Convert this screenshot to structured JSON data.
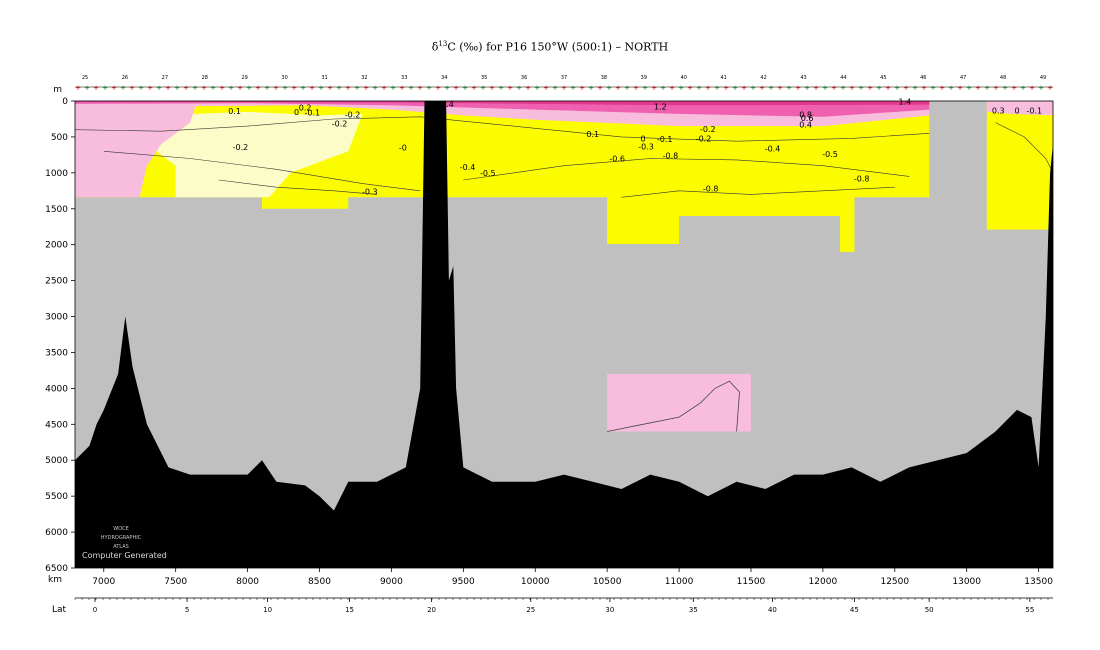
{
  "title": {
    "prefix": "δ",
    "superscript": "13",
    "suffix": "C (‰) for P16 150°W (500:1) – NORTH"
  },
  "colors": {
    "pink_dark": "#e0388c",
    "pink_mid": "#f060b0",
    "pink_light": "#f8bcdc",
    "pale_yellow": "#fcfcc8",
    "yellow": "#fcfc00",
    "gray": "#c0c0c0",
    "bathymetry": "#000000"
  },
  "chart_data": {
    "type": "heatmap",
    "title": "δ13C (‰) for P16 150°W (500:1) – NORTH",
    "depth_axis": {
      "label": "m",
      "ticks": [
        0,
        500,
        1000,
        1500,
        2000,
        2500,
        3000,
        3500,
        4000,
        4500,
        5000,
        5500,
        6000,
        6500
      ],
      "range": [
        0,
        6500
      ]
    },
    "distance_axis": {
      "label": "km",
      "ticks": [
        7000,
        7500,
        8000,
        8500,
        9000,
        9500,
        10000,
        10500,
        11000,
        11500,
        12000,
        12500,
        13000,
        13500
      ],
      "range": [
        6800,
        13600
      ]
    },
    "latitude_axis": {
      "label": "Lat",
      "ticks": [
        0,
        5,
        10,
        15,
        20,
        25,
        30,
        35,
        40,
        45,
        50,
        55
      ]
    },
    "contour_labels": [
      {
        "text": "1.4",
        "km": 9390,
        "depth": 40
      },
      {
        "text": "1.2",
        "km": 10870,
        "depth": 80
      },
      {
        "text": "1.4",
        "km": 12570,
        "depth": 10
      },
      {
        "text": "0.8",
        "km": 11880,
        "depth": 190
      },
      {
        "text": "0.6",
        "km": 11890,
        "depth": 240
      },
      {
        "text": "0.4",
        "km": 11880,
        "depth": 330
      },
      {
        "text": "0.3",
        "km": 13220,
        "depth": 130
      },
      {
        "text": "0",
        "km": 13350,
        "depth": 130
      },
      {
        "text": "0",
        "km": 8340,
        "depth": 150
      },
      {
        "text": "0.1",
        "km": 7910,
        "depth": 140
      },
      {
        "text": "-0.1",
        "km": 8450,
        "depth": 160
      },
      {
        "text": "-0.1",
        "km": 13470,
        "depth": 130
      },
      {
        "text": "0.2",
        "km": 8400,
        "depth": 90
      },
      {
        "text": "-0.2",
        "km": 8730,
        "depth": 190
      },
      {
        "text": "-0.2",
        "km": 8640,
        "depth": 310
      },
      {
        "text": "-0.2",
        "km": 7950,
        "depth": 640
      },
      {
        "text": "0.1",
        "km": 10400,
        "depth": 460
      },
      {
        "text": "-0.2",
        "km": 11200,
        "depth": 390
      },
      {
        "text": "-0.2",
        "km": 11170,
        "depth": 520
      },
      {
        "text": "0",
        "km": 10750,
        "depth": 520
      },
      {
        "text": "-0.1",
        "km": 10900,
        "depth": 530
      },
      {
        "text": "-0.3",
        "km": 10770,
        "depth": 630
      },
      {
        "text": "-0.4",
        "km": 11650,
        "depth": 660
      },
      {
        "text": "-0.5",
        "km": 12050,
        "depth": 740
      },
      {
        "text": "-0.6",
        "km": 10570,
        "depth": 800
      },
      {
        "text": "-0.8",
        "km": 10940,
        "depth": 760
      },
      {
        "text": "-0.4",
        "km": 9530,
        "depth": 920
      },
      {
        "text": "-0.5",
        "km": 9670,
        "depth": 1000
      },
      {
        "text": "-0.8",
        "km": 12270,
        "depth": 1080
      },
      {
        "text": "-0.8",
        "km": 11220,
        "depth": 1220
      },
      {
        "text": "-0.3",
        "km": 8850,
        "depth": 1260
      },
      {
        "text": "-0",
        "km": 9080,
        "depth": 650
      }
    ],
    "grid": false,
    "legend": "none"
  },
  "station_labels": [
    "25",
    "26",
    "27",
    "28",
    "29",
    "30",
    "31",
    "32",
    "33",
    "34",
    "35",
    "36",
    "37",
    "38",
    "39",
    "40",
    "41",
    "42",
    "43",
    "44",
    "45",
    "46",
    "47",
    "48",
    "49"
  ],
  "watermark": {
    "line1": "WOCE",
    "line2": "HYDROGRAPHIC",
    "line3": "ATLAS",
    "caption": "Computer Generated"
  }
}
